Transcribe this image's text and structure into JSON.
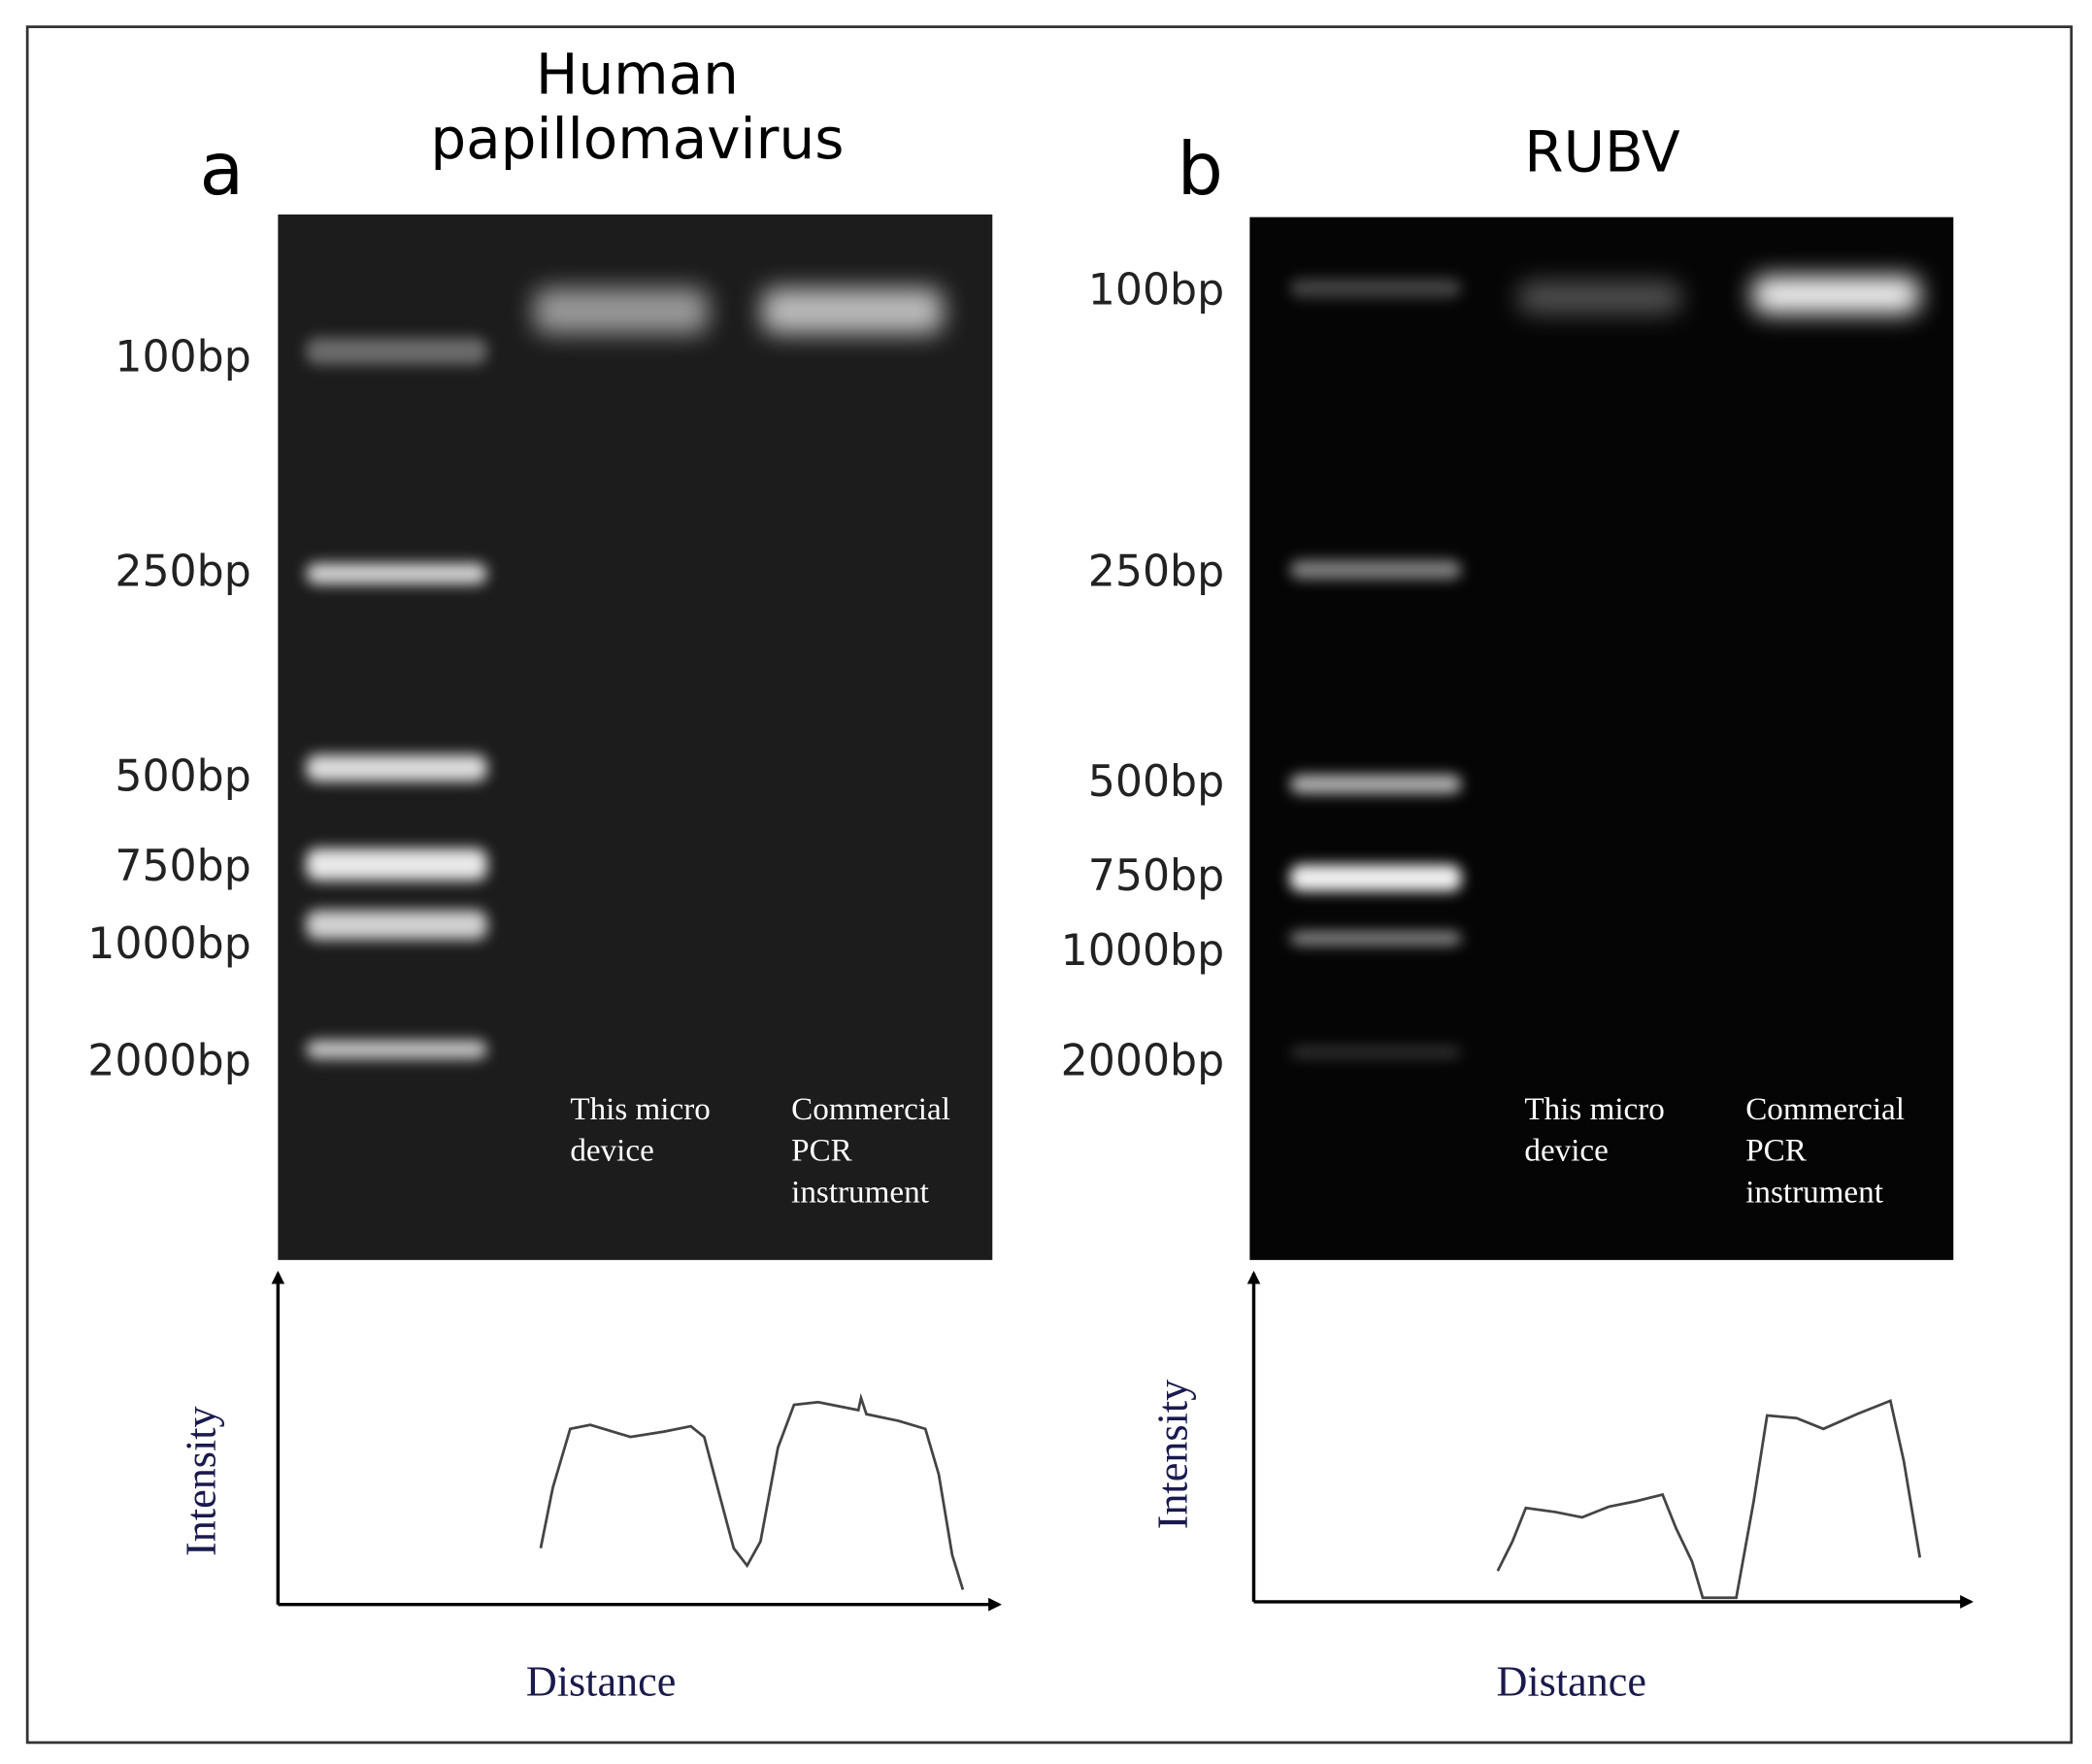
{
  "panels": [
    {
      "label": "a",
      "title": [
        "Human",
        "papillomavirus"
      ],
      "ladder": [
        "100bp",
        "250bp",
        "500bp",
        "750bp",
        "1000bp",
        "2000bp"
      ],
      "lanes": [
        [
          "This micro",
          "device"
        ],
        [
          "Commercial",
          "PCR",
          "instrument"
        ]
      ],
      "y_axis": "Intensity",
      "x_axis": "Distance"
    },
    {
      "label": "b",
      "title": [
        "RUBV"
      ],
      "ladder": [
        "100bp",
        "250bp",
        "500bp",
        "750bp",
        "1000bp",
        "2000bp"
      ],
      "lanes": [
        [
          "This micro",
          "device"
        ],
        [
          "Commercial",
          "PCR",
          "instrument"
        ]
      ],
      "y_axis": "Intensity",
      "x_axis": "Distance"
    }
  ]
}
